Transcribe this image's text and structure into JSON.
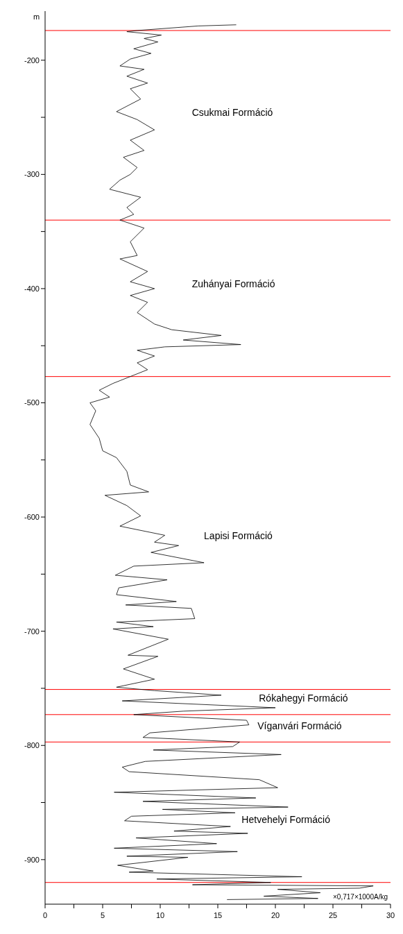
{
  "chart_data": {
    "type": "line",
    "ylabel": "m",
    "xlabel": "×0,717×1000A/kg",
    "xlim": [
      0,
      30
    ],
    "xticks": [
      0,
      {
        "value": 2.5,
        "label": null
      },
      5,
      {
        "value": 7.5,
        "label": null
      },
      10,
      {
        "value": 12.5,
        "label": null
      },
      15,
      {
        "value": 17.5,
        "label": null
      },
      20,
      {
        "value": 22.5,
        "label": null
      },
      25,
      {
        "value": 27.5,
        "label": null
      },
      30
    ],
    "ylim": [
      -939,
      -157
    ],
    "yticks": [
      -900,
      {
        "value": -850,
        "label": null
      },
      -800,
      {
        "value": -750,
        "label": null
      },
      -700,
      {
        "value": -650,
        "label": null
      },
      -600,
      {
        "value": -550,
        "label": null
      },
      -500,
      {
        "value": -450,
        "label": null
      },
      -400,
      {
        "value": -350,
        "label": null
      },
      -300,
      {
        "value": -250,
        "label": null
      },
      -200
    ],
    "grid": false,
    "marker": "none",
    "line_style": "solid",
    "series": [
      {
        "color": "#000000",
        "x": [
          16.6,
          13.3,
          8,
          7.1,
          10.1,
          8.6,
          9.8,
          7.7,
          9.2,
          7.4,
          6.5,
          8.6,
          7.1,
          8.9,
          7.4,
          8.3,
          6.2,
          8,
          9.5,
          7.4,
          8.6,
          6.8,
          8,
          7.4,
          6.5,
          5.6,
          8.3,
          7.1,
          7.7,
          6.5,
          8.6,
          7.4,
          8,
          6.5,
          8.9,
          7.4,
          9.5,
          7.4,
          8.9,
          8,
          9.5,
          11,
          15.3,
          12,
          17,
          10.4,
          8,
          9.5,
          8,
          8.9,
          7.4,
          5.9,
          4.7,
          5.6,
          3.9,
          4.4,
          3.9,
          4.7,
          5,
          6.2,
          7.1,
          7.4,
          9,
          5.2,
          7.1,
          8.3,
          6.5,
          10.4,
          9.5,
          11.6,
          9.2,
          13.8,
          7.7,
          6.1,
          10.6,
          6.4,
          6.2,
          11.4,
          7,
          12.7,
          13,
          6.2,
          9.4,
          5.9,
          10.7,
          7.2,
          9.8,
          6.8,
          9.5,
          6.2,
          9.5,
          15.3,
          6.7,
          20,
          12,
          7.7,
          17.5,
          17.7,
          9.1,
          8.5,
          16.9,
          16.3,
          9.4,
          20.5,
          8.7,
          6.7,
          7.3,
          18.6,
          20.2,
          6,
          18.3,
          8.5,
          21.1,
          10.2,
          16.5,
          7.5,
          6.9,
          16.1,
          11.2,
          17.6,
          7.9,
          14.9,
          6,
          16.7,
          7.1,
          12.4,
          6.3,
          9.4,
          7.3,
          22.3,
          9.7,
          19.6,
          12.8,
          28.5,
          27.3,
          20.2,
          23.9,
          19,
          23.7,
          15.8
        ],
        "values": [
          -169,
          -170,
          -174,
          -175,
          -178,
          -181,
          -184,
          -190,
          -194,
          -199,
          -205,
          -208,
          -214,
          -220,
          -225,
          -234,
          -245,
          -252,
          -261,
          -270,
          -279,
          -285,
          -294,
          -300,
          -305,
          -313,
          -320,
          -329,
          -335,
          -340,
          -347,
          -359,
          -371,
          -374,
          -385,
          -394,
          -400,
          -406,
          -412,
          -421,
          -431,
          -436,
          -441,
          -445,
          -449,
          -451,
          -454,
          -459,
          -465,
          -471,
          -477,
          -483,
          -489,
          -495,
          -500,
          -507,
          -519,
          -531,
          -542,
          -548,
          -560,
          -572,
          -578,
          -581,
          -590,
          -599,
          -608,
          -616,
          -622,
          -625,
          -631,
          -640,
          -643,
          -651,
          -655,
          -662,
          -668,
          -674,
          -677,
          -680,
          -689,
          -692,
          -696,
          -698,
          -707,
          -721,
          -722,
          -733,
          -742,
          -749,
          -752,
          -756,
          -761,
          -767,
          -770,
          -773,
          -778,
          -782,
          -789,
          -793,
          -797,
          -801,
          -804,
          -808,
          -814,
          -819,
          -823,
          -830,
          -837,
          -841,
          -846,
          -849,
          -854,
          -856,
          -859,
          -862,
          -866,
          -871,
          -875,
          -877,
          -881,
          -886,
          -890,
          -893,
          -897,
          -898,
          -905,
          -910,
          -911,
          -915,
          -917,
          -920,
          -922,
          -923,
          -925,
          -926,
          -929,
          -932,
          -934,
          -935
        ]
      }
    ],
    "ref_lines": [
      {
        "axis": "y",
        "value": -174,
        "color": "#ff0000"
      },
      {
        "axis": "y",
        "value": -340,
        "color": "#ff0000"
      },
      {
        "axis": "y",
        "value": -477,
        "color": "#ff0000"
      },
      {
        "axis": "y",
        "value": -751,
        "color": "#ff0000"
      },
      {
        "axis": "y",
        "value": -773,
        "color": "#ff0000"
      },
      {
        "axis": "y",
        "value": -797,
        "color": "#ff0000"
      },
      {
        "axis": "y",
        "value": -920,
        "color": "#ff0000"
      }
    ],
    "annotations": [
      "Csukmai Formáció",
      "Zuhányai Formáció",
      "Lapisi Formáció",
      "Rókahegyi Formáció",
      "Víganvári Formáció",
      "Hetvehelyi Formáció"
    ]
  }
}
